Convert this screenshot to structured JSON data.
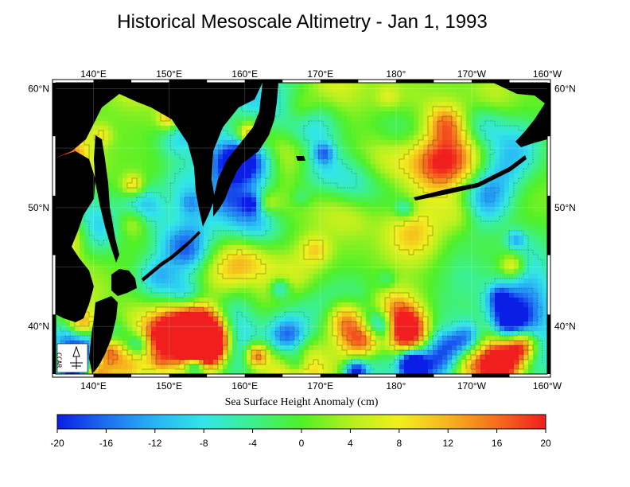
{
  "title": "Historical Mesoscale Altimetry - Jan 1, 1993",
  "map": {
    "lon_ticks_top": [
      "140°E",
      "150°E",
      "160°E",
      "170°E",
      "180°",
      "170°W",
      "160°W"
    ],
    "lon_ticks_bottom": [
      "140°E",
      "150°E",
      "160°E",
      "170°E",
      "180°",
      "170°W",
      "160°W"
    ],
    "lat_ticks_left": [
      "60°N",
      "50°N",
      "40°N"
    ],
    "lat_ticks_right": [
      "60°N",
      "50°N",
      "40°N"
    ],
    "lon_range": [
      135,
      200
    ],
    "lat_range": [
      36,
      60.5
    ],
    "land_color": "#000000",
    "logo_text": "CCAR"
  },
  "colorbar": {
    "title": "Sea Surface Height Anomaly (cm)",
    "ticks": [
      "-20",
      "-16",
      "-12",
      "-8",
      "-4",
      "0",
      "4",
      "8",
      "12",
      "16",
      "20"
    ],
    "range": [
      -20,
      20
    ],
    "colors": [
      "#0a1ee6",
      "#1e6ef0",
      "#28b4f5",
      "#32e6e6",
      "#3cf08c",
      "#50f028",
      "#b4f01e",
      "#f0f01e",
      "#f5b41e",
      "#f56e1e",
      "#f01e1e"
    ]
  }
}
